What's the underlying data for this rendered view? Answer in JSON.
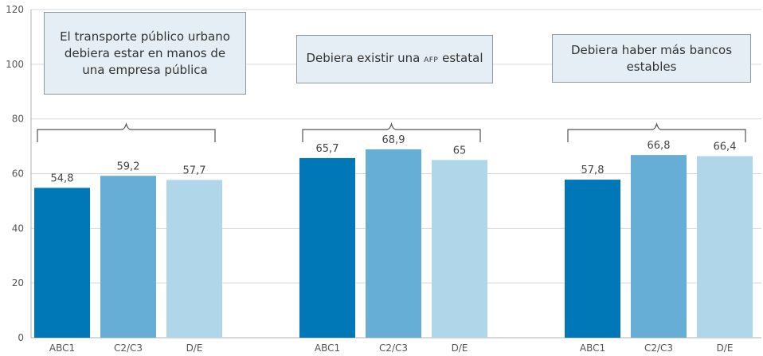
{
  "chart_data": {
    "type": "bar",
    "ylim": [
      0,
      120
    ],
    "yticks": [
      0,
      20,
      40,
      60,
      80,
      100,
      120
    ],
    "grid": true,
    "colors": [
      "#0077b6",
      "#66aed6",
      "#b0d6ea"
    ],
    "groups": [
      {
        "title": "El transporte público urbano debiera estar en manos de una empresa pública",
        "categories": [
          "ABC1",
          "C2/C3",
          "D/E"
        ],
        "values": [
          54.8,
          59.2,
          57.7
        ],
        "value_labels": [
          "54,8",
          "59,2",
          "57,7"
        ]
      },
      {
        "title_parts": [
          "Debiera existir una ",
          "AFP",
          " estatal"
        ],
        "categories": [
          "ABC1",
          "C2/C3",
          "D/E"
        ],
        "values": [
          65.7,
          68.9,
          65
        ],
        "value_labels": [
          "65,7",
          "68,9",
          "65"
        ]
      },
      {
        "title": "Debiera haber más bancos estables",
        "categories": [
          "ABC1",
          "C2/C3",
          "D/E"
        ],
        "values": [
          57.8,
          66.8,
          66.4
        ],
        "value_labels": [
          "57,8",
          "66,8",
          "66,4"
        ]
      }
    ]
  }
}
